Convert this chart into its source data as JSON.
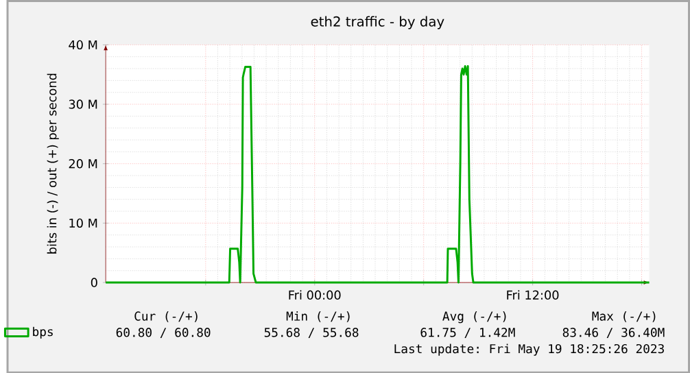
{
  "chart_data": {
    "type": "line",
    "title": "eth2 traffic - by day",
    "ylabel": "bits in (-) / out (+) per second",
    "xlim": [
      "2023-05-18T12:30",
      "2023-05-19T18:25"
    ],
    "xticks": [
      {
        "value": "2023-05-18T18:00",
        "label": null
      },
      {
        "value": "2023-05-19T00:00",
        "label": "Fri 00:00"
      },
      {
        "value": "2023-05-19T06:00",
        "label": null
      },
      {
        "value": "2023-05-19T12:00",
        "label": "Fri 12:00"
      },
      {
        "value": "2023-05-19T18:00",
        "label": null
      }
    ],
    "ylim": [
      0,
      40
    ],
    "yticks": [
      0,
      {
        "value": 10,
        "label": "10 M"
      },
      {
        "value": 20,
        "label": "20 M"
      },
      {
        "value": 30,
        "label": "30 M"
      },
      {
        "value": 40,
        "label": "40 M"
      }
    ],
    "grid": true,
    "legend": "bottom left",
    "marker": "none",
    "line_style": "solid",
    "series": [
      {
        "name": "bps",
        "color": "#00aa00",
        "x": [
          "2023-05-18T12:30",
          "2023-05-18T19:18",
          "2023-05-18T19:21",
          "2023-05-18T19:46",
          "2023-05-18T19:51",
          "2023-05-18T19:54",
          "2023-05-18T20:01",
          "2023-05-18T20:03",
          "2023-05-18T20:05",
          "2023-05-18T20:11",
          "2023-05-18T20:28",
          "2023-05-18T20:34",
          "2023-05-18T20:38",
          "2023-05-18T20:46",
          "2023-05-19T07:18",
          "2023-05-19T07:20",
          "2023-05-19T07:47",
          "2023-05-19T07:52",
          "2023-05-19T07:55",
          "2023-05-19T08:01",
          "2023-05-19T08:04",
          "2023-05-19T08:08",
          "2023-05-19T08:12",
          "2023-05-19T08:17",
          "2023-05-19T08:22",
          "2023-05-19T08:26",
          "2023-05-19T08:31",
          "2023-05-19T08:40",
          "2023-05-19T08:44",
          "2023-05-19T18:25"
        ],
        "values": [
          0,
          0,
          5.7,
          5.7,
          3.4,
          0,
          16,
          34.5,
          35,
          36.3,
          36.3,
          16,
          1.5,
          0,
          0,
          5.7,
          5.7,
          3.4,
          0,
          20,
          35,
          36,
          35,
          36.4,
          35,
          36.4,
          14,
          1.5,
          0,
          0
        ]
      }
    ],
    "annotations": [
      "Cur (-/+)",
      "Min (-/+)",
      "Avg (-/+)",
      "Max (-/+)",
      "60.80 /  60.80",
      "55.68 / 55.68",
      "61.75 /   1.42M",
      "83.46 / 36.40M",
      "Last update: Fri May 19 18:25:26 2023"
    ]
  }
}
